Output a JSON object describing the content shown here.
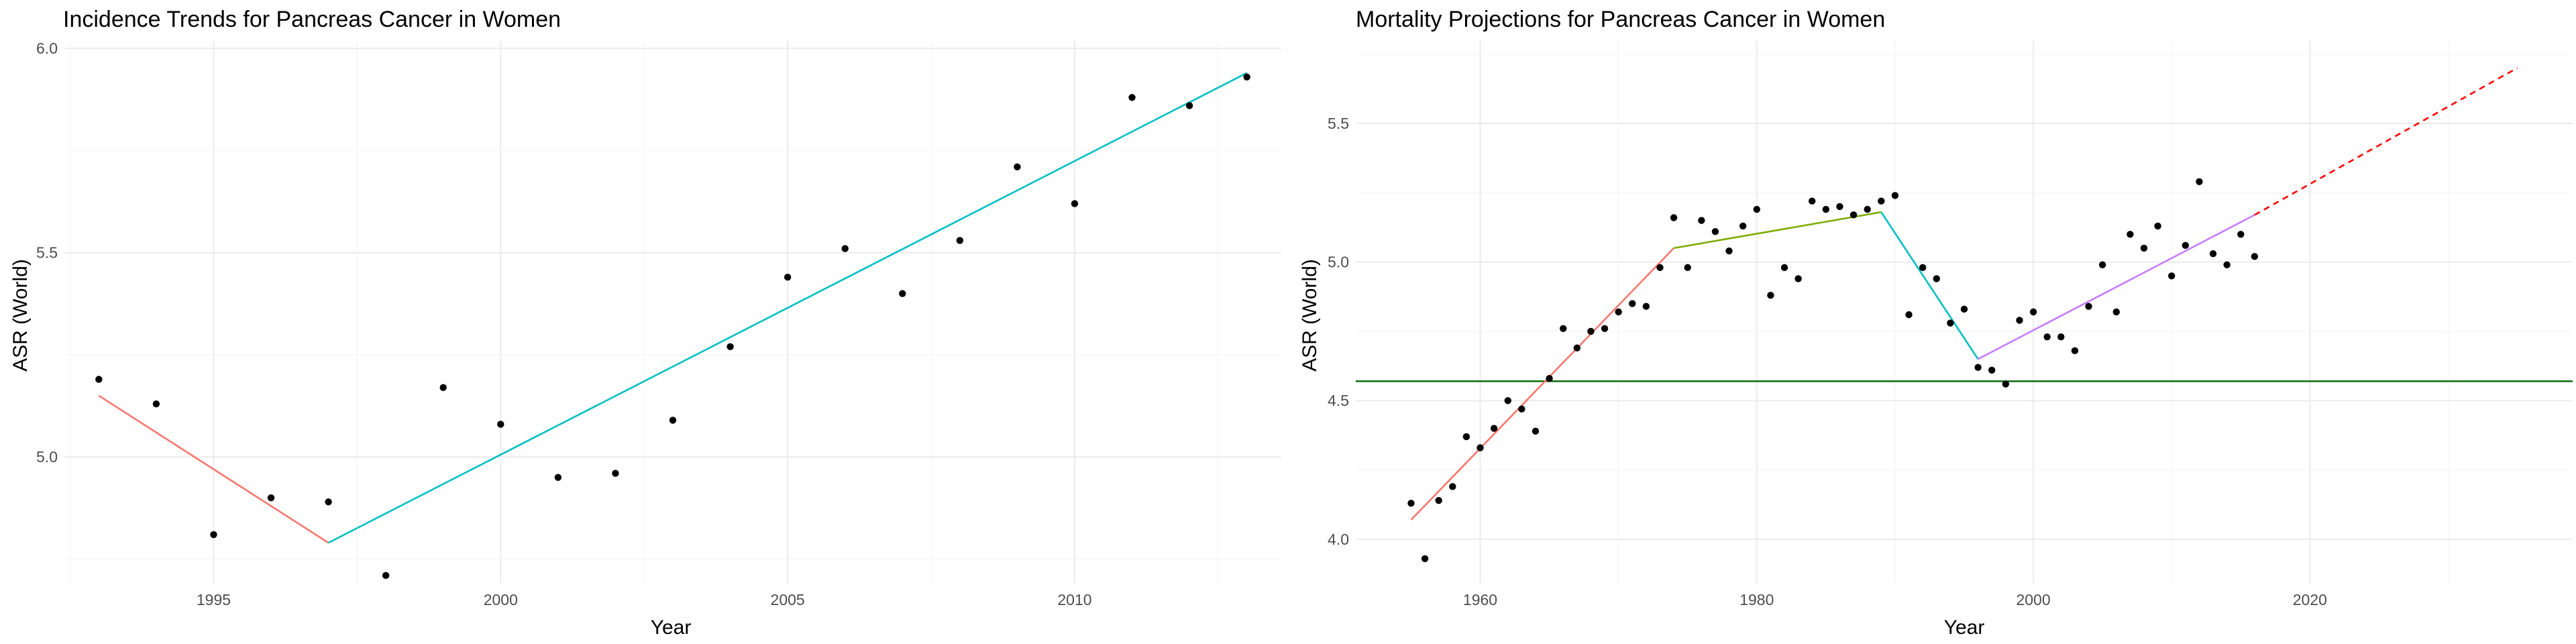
{
  "chart_data": [
    {
      "type": "scatter",
      "title": "Incidence Trends for Pancreas Cancer in Women",
      "xlabel": "Year",
      "ylabel": "ASR (World)",
      "xlim": [
        1992.4,
        2013.6
      ],
      "ylim": [
        4.69,
        6.02
      ],
      "x_ticks": [
        1995,
        2000,
        2005,
        2010
      ],
      "y_ticks": [
        5.0,
        5.5,
        6.0
      ],
      "x_tick_labels": [
        "1995",
        "2000",
        "2005",
        "2010"
      ],
      "y_tick_labels": [
        "5.0",
        "5.5",
        "6.0"
      ],
      "grid": true,
      "points": {
        "x": [
          1993,
          1994,
          1995,
          1996,
          1997,
          1998,
          1999,
          2000,
          2001,
          2002,
          2003,
          2004,
          2005,
          2006,
          2007,
          2008,
          2009,
          2010,
          2011,
          2012,
          2013
        ],
        "y": [
          5.19,
          5.13,
          4.81,
          4.9,
          4.89,
          4.71,
          5.17,
          5.08,
          4.95,
          4.96,
          5.09,
          5.27,
          5.44,
          5.51,
          5.4,
          5.53,
          5.71,
          5.62,
          5.88,
          5.86,
          5.93
        ]
      },
      "series": [
        {
          "color": "#f8766d",
          "style": "solid",
          "x": [
            1993,
            1997
          ],
          "y": [
            5.15,
            4.79
          ]
        },
        {
          "color": "#00bfc4",
          "style": "solid",
          "x": [
            1997,
            2013
          ],
          "y": [
            4.79,
            5.94
          ]
        }
      ]
    },
    {
      "type": "scatter",
      "title": "Mortality Projections for Pancreas Cancer in Women",
      "xlabel": "Year",
      "ylabel": "ASR (World)",
      "xlim": [
        1951,
        2039
      ],
      "ylim": [
        3.84,
        5.8
      ],
      "x_ticks": [
        1960,
        1980,
        2000,
        2020
      ],
      "y_ticks": [
        4.0,
        4.5,
        5.0,
        5.5
      ],
      "x_tick_labels": [
        "1960",
        "1980",
        "2000",
        "2020"
      ],
      "y_tick_labels": [
        "4.0",
        "4.5",
        "5.0",
        "5.5"
      ],
      "grid": true,
      "points": {
        "x": [
          1955,
          1956,
          1957,
          1958,
          1959,
          1960,
          1961,
          1962,
          1963,
          1964,
          1965,
          1966,
          1967,
          1968,
          1969,
          1970,
          1971,
          1972,
          1973,
          1974,
          1975,
          1976,
          1977,
          1978,
          1979,
          1980,
          1981,
          1982,
          1983,
          1984,
          1985,
          1986,
          1987,
          1988,
          1989,
          1990,
          1991,
          1992,
          1993,
          1994,
          1995,
          1996,
          1997,
          1998,
          1999,
          2000,
          2001,
          2002,
          2003,
          2004,
          2005,
          2006,
          2007,
          2008,
          2009,
          2010,
          2011,
          2012,
          2013,
          2014,
          2015,
          2016
        ],
        "y": [
          4.13,
          3.93,
          4.14,
          4.19,
          4.37,
          4.33,
          4.4,
          4.5,
          4.47,
          4.39,
          4.58,
          4.76,
          4.69,
          4.75,
          4.76,
          4.82,
          4.85,
          4.84,
          4.98,
          5.16,
          4.98,
          5.15,
          5.11,
          5.04,
          5.13,
          5.19,
          4.88,
          4.98,
          4.94,
          5.22,
          5.19,
          5.2,
          5.17,
          5.19,
          5.22,
          5.24,
          4.81,
          4.98,
          4.94,
          4.78,
          4.83,
          4.62,
          4.61,
          4.56,
          4.79,
          4.82,
          4.73,
          4.73,
          4.68,
          4.84,
          4.99,
          4.82,
          5.1,
          5.05,
          5.13,
          4.95,
          5.06,
          5.29,
          5.03,
          4.99,
          5.1,
          5.02
        ]
      },
      "series": [
        {
          "color": "#f8766d",
          "style": "solid",
          "x": [
            1955,
            1974
          ],
          "y": [
            4.07,
            5.05
          ]
        },
        {
          "color": "#7cae00",
          "style": "solid",
          "x": [
            1974,
            1989
          ],
          "y": [
            5.05,
            5.18
          ]
        },
        {
          "color": "#00bfc4",
          "style": "solid",
          "x": [
            1989,
            1996
          ],
          "y": [
            5.18,
            4.65
          ]
        },
        {
          "color": "#c77cff",
          "style": "solid",
          "x": [
            1996,
            2016
          ],
          "y": [
            4.65,
            5.17
          ]
        },
        {
          "color": "#ff0000",
          "style": "dashed",
          "x": [
            2016,
            2035
          ],
          "y": [
            5.17,
            5.7
          ]
        }
      ],
      "hline": {
        "y": 4.57,
        "color": "#006400"
      }
    }
  ]
}
